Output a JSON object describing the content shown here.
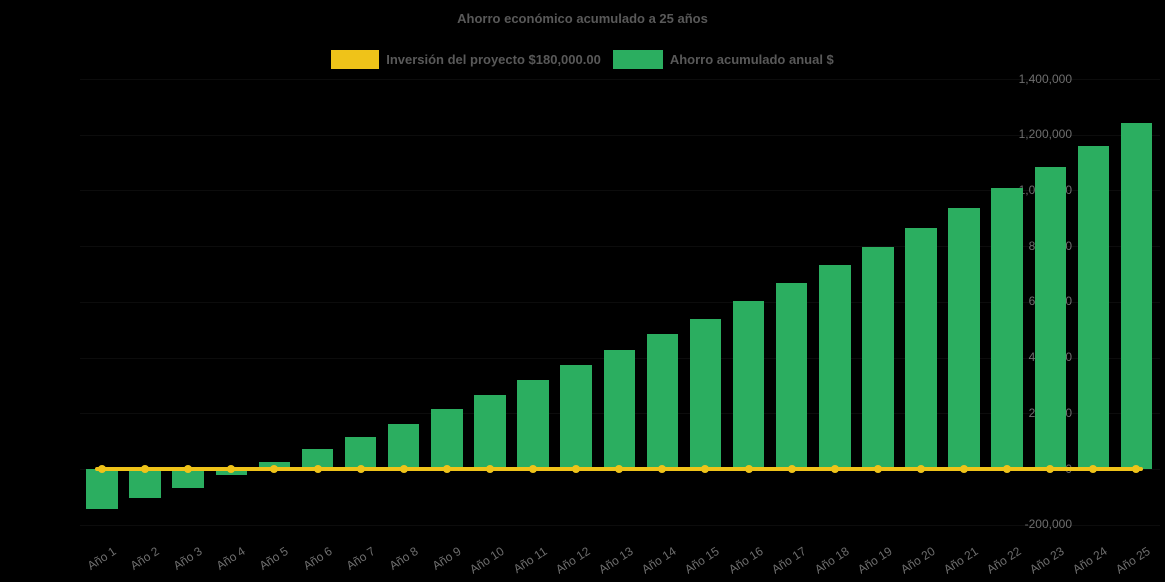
{
  "page": {
    "background_color": "#000000"
  },
  "chart_data": {
    "type": "bar",
    "title": "Ahorro económico acumulado a 25 años",
    "legend_position": "top-center",
    "grid": "horizontal gridlines, near-invisible dark on black background",
    "categories": [
      "Año 1",
      "Año 2",
      "Año 3",
      "Año 4",
      "Año 5",
      "Año 6",
      "Año 7",
      "Año 8",
      "Año 9",
      "Año 10",
      "Año 11",
      "Año 12",
      "Año 13",
      "Año 14",
      "Año 15",
      "Año 16",
      "Año 17",
      "Año 18",
      "Año 19",
      "Año 20",
      "Año 21",
      "Año 22",
      "Año 23",
      "Año 24",
      "Año 25"
    ],
    "series": [
      {
        "name": "Inversión del proyecto $180,000.00",
        "type": "line",
        "color": "#EFC319",
        "marker": "circle",
        "values": [
          0,
          0,
          0,
          0,
          0,
          0,
          0,
          0,
          0,
          0,
          0,
          0,
          0,
          0,
          0,
          0,
          0,
          0,
          0,
          0,
          0,
          0,
          0,
          0,
          0
        ]
      },
      {
        "name": "Ahorro acumulado anual $",
        "type": "bar",
        "color": "#2BAE60",
        "values": [
          -145000,
          -103000,
          -67000,
          -20000,
          26000,
          71000,
          116000,
          163000,
          215000,
          265000,
          320000,
          373000,
          427000,
          483000,
          539000,
          603000,
          669000,
          732000,
          798000,
          866000,
          938000,
          1010000,
          1083000,
          1160000,
          1241000
        ]
      }
    ],
    "xlabel": "",
    "ylabel": "",
    "ylim": [
      -200000,
      1400000
    ],
    "ytick_interval": 200000,
    "ytick_values": [
      -200000,
      0,
      200000,
      400000,
      600000,
      800000,
      1000000,
      1200000,
      1400000
    ],
    "ytick_labels": [
      "-200,000",
      "0",
      "200,000",
      "400,000",
      "600,000",
      "800,000",
      "1,000,000",
      "1,200,000",
      "1,400,000"
    ],
    "text_colors": {
      "title": "#595959",
      "legend": "#595959",
      "axis_ticks": "#6E6E6E"
    }
  }
}
